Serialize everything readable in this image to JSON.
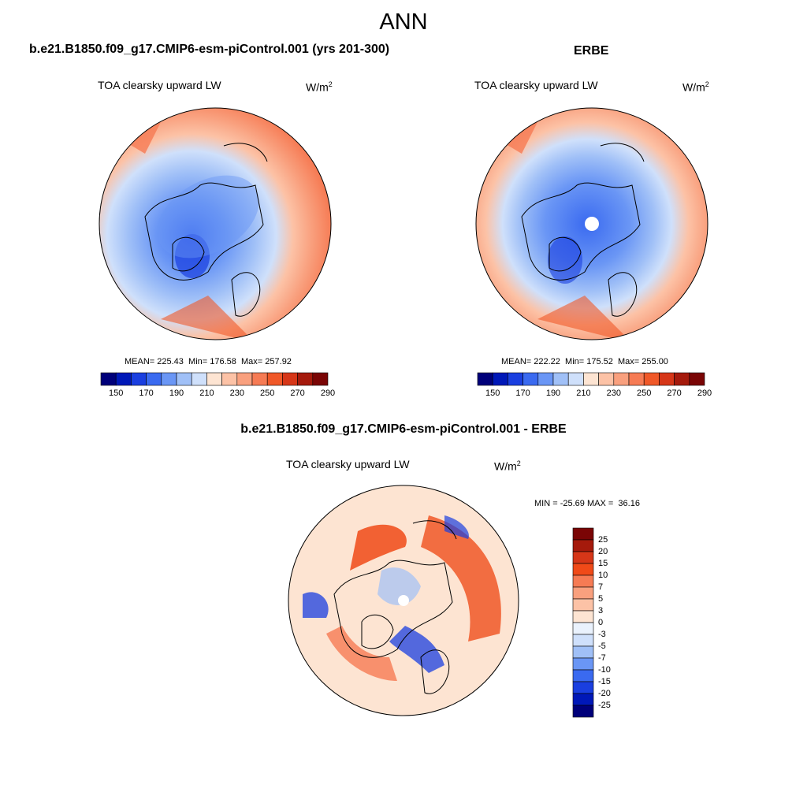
{
  "title": "ANN",
  "panels": [
    {
      "header": "b.e21.B1850.f09_g17.CMIP6-esm-piControl.001 (yrs 201-300)",
      "variable": "TOA clearsky upward LW",
      "units_base": "W/m",
      "units_exp": "2",
      "stats": {
        "mean": "225.43",
        "min": "176.58",
        "max": "257.92"
      }
    },
    {
      "header": "ERBE",
      "variable": "TOA clearsky upward LW",
      "units_base": "W/m",
      "units_exp": "2",
      "stats": {
        "mean": "222.22",
        "min": "175.52",
        "max": "255.00"
      }
    },
    {
      "header": "b.e21.B1850.f09_g17.CMIP6-esm-piControl.001 - ERBE",
      "variable": "TOA clearsky upward LW",
      "units_base": "W/m",
      "units_exp": "2",
      "stats": {
        "min": "-25.69",
        "max": "36.16"
      }
    }
  ],
  "colorbar_abs": {
    "ticks": [
      "150",
      "170",
      "190",
      "210",
      "230",
      "250",
      "270",
      "290"
    ],
    "colors": [
      "#00007a",
      "#0018b8",
      "#1a3fe0",
      "#3a6af0",
      "#6a96f5",
      "#a0c0f7",
      "#cfe0fb",
      "#fde4d2",
      "#fcc2a6",
      "#f9a07e",
      "#f67b54",
      "#f05828",
      "#d63618",
      "#a51a0c",
      "#7a0505"
    ]
  },
  "colorbar_diff": {
    "ticks": [
      "25",
      "20",
      "15",
      "10",
      "7",
      "5",
      "3",
      "0",
      "-3",
      "-5",
      "-7",
      "-10",
      "-15",
      "-20",
      "-25"
    ],
    "colors": [
      "#7a0505",
      "#a51a0c",
      "#d63618",
      "#f04a18",
      "#f67b54",
      "#f9a07e",
      "#fcc2a6",
      "#fde4d2",
      "#eaf2fd",
      "#cfe0fb",
      "#a0c0f7",
      "#6a96f5",
      "#3a6af0",
      "#1a3fe0",
      "#0018b8",
      "#00007a"
    ]
  }
}
